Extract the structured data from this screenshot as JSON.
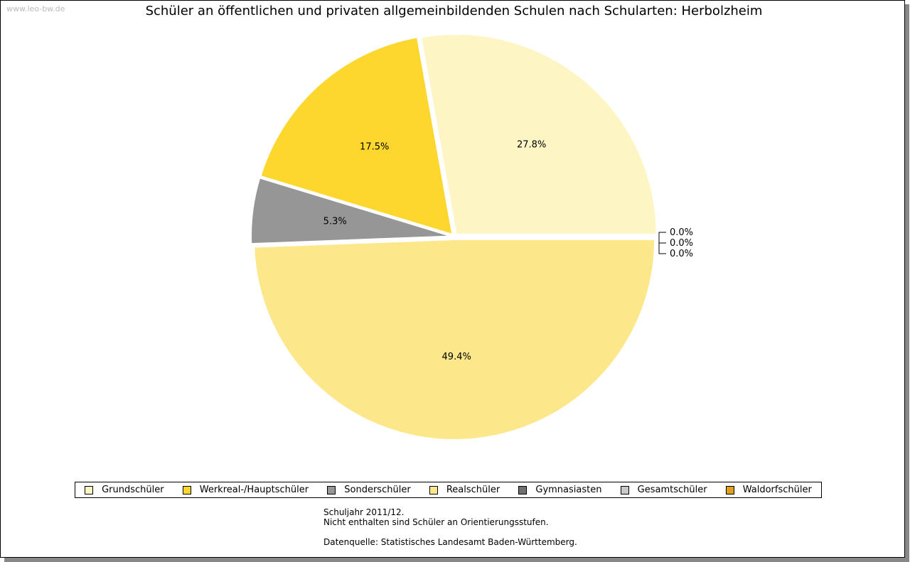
{
  "watermark": "www.leo-bw.de",
  "chart_data": {
    "type": "pie",
    "title": "Schüler an öffentlichen und privaten allgemeinbildenden Schulen nach Schularten: Herbolzheim",
    "categories": [
      "Grundschüler",
      "Werkreal-/Hauptschüler",
      "Sonderschüler",
      "Realschüler",
      "Gymnasiasten",
      "Gesamtschüler",
      "Waldorfschüler"
    ],
    "values": [
      27.8,
      17.5,
      5.3,
      49.4,
      0.0,
      0.0,
      0.0
    ],
    "labels": [
      "27.8%",
      "17.5%",
      "5.3%",
      "49.4%",
      "0.0%",
      "0.0%",
      "0.0%"
    ],
    "colors": [
      "#fdf5c4",
      "#fdd62e",
      "#969696",
      "#fce78a",
      "#707070",
      "#c8c8c8",
      "#e0a21a"
    ],
    "legend_position": "bottom"
  },
  "notes": [
    "Schuljahr 2011/12.",
    "Nicht enthalten sind Schüler an Orientierungsstufen.",
    "",
    "Datenquelle: Statistisches Landesamt Baden-Württemberg."
  ]
}
